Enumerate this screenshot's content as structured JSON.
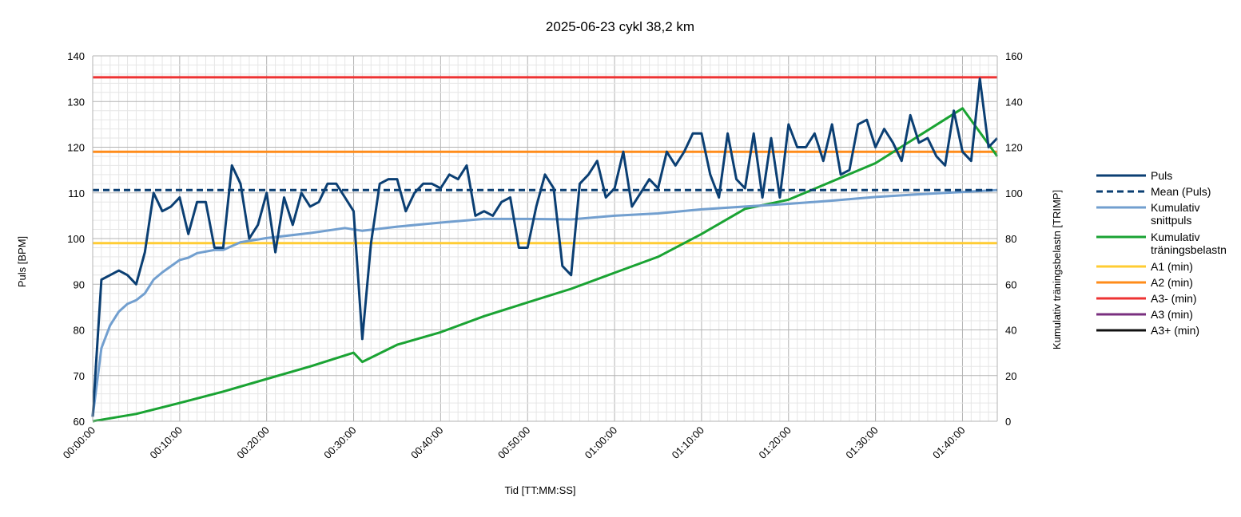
{
  "chart_data": {
    "type": "line",
    "title": "2025-06-23 cykl 38,2 km",
    "xlabel": "Tid [TT:MM:SS]",
    "ylabel": "Puls [BPM]",
    "y2label": "Kumulativ träningsbelastn [TRIMP]",
    "xlim": [
      0,
      104
    ],
    "ylim": [
      60,
      140
    ],
    "y2lim": [
      0,
      160
    ],
    "x_ticks": [
      "00:00:00",
      "00:10:00",
      "00:20:00",
      "00:30:00",
      "00:40:00",
      "00:50:00",
      "01:00:00",
      "01:10:00",
      "01:20:00",
      "01:30:00",
      "01:40:00"
    ],
    "y_ticks": [
      "60",
      "70",
      "80",
      "90",
      "100",
      "110",
      "120",
      "130",
      "140"
    ],
    "y2_ticks": [
      "0",
      "20",
      "40",
      "60",
      "80",
      "100",
      "120",
      "140",
      "160"
    ],
    "grid": true,
    "legend_position": "right",
    "x_unit": "minutes",
    "series": [
      {
        "name": "Puls",
        "axis": "left",
        "color": "#0b3f73",
        "dash": "solid",
        "x": [
          0,
          1,
          2,
          3,
          4,
          5,
          6,
          7,
          8,
          9,
          10,
          11,
          12,
          13,
          14,
          15,
          16,
          17,
          18,
          19,
          20,
          21,
          22,
          23,
          24,
          25,
          26,
          27,
          28,
          29,
          30,
          31,
          32,
          33,
          34,
          35,
          36,
          37,
          38,
          39,
          40,
          41,
          42,
          43,
          44,
          45,
          46,
          47,
          48,
          49,
          50,
          51,
          52,
          53,
          54,
          55,
          56,
          57,
          58,
          59,
          60,
          61,
          62,
          63,
          64,
          65,
          66,
          67,
          68,
          69,
          70,
          71,
          72,
          73,
          74,
          75,
          76,
          77,
          78,
          79,
          80,
          81,
          82,
          83,
          84,
          85,
          86,
          87,
          88,
          89,
          90,
          91,
          92,
          93,
          94,
          95,
          96,
          97,
          98,
          99,
          100,
          101,
          102,
          103,
          104
        ],
        "values": [
          61,
          91,
          92,
          93,
          92,
          90,
          97,
          110,
          106,
          107,
          109,
          101,
          108,
          108,
          98,
          98,
          116,
          112,
          100,
          103,
          110,
          97,
          109,
          103,
          110,
          107,
          108,
          112,
          112,
          109,
          106,
          78,
          99,
          112,
          113,
          113,
          106,
          110,
          112,
          112,
          111,
          114,
          113,
          116,
          105,
          106,
          105,
          108,
          109,
          98,
          98,
          107,
          114,
          111,
          94,
          92,
          112,
          114,
          117,
          109,
          111,
          119,
          107,
          110,
          113,
          111,
          119,
          116,
          119,
          123,
          123,
          114,
          109,
          123,
          113,
          111,
          123,
          109,
          122,
          109,
          125,
          120,
          120,
          123,
          117,
          125,
          114,
          115,
          125,
          126,
          120,
          124,
          121,
          117,
          127,
          121,
          122,
          118,
          116,
          128,
          119,
          117,
          135,
          120,
          122
        ]
      },
      {
        "name": "Mean (Puls)",
        "axis": "left",
        "color": "#0b3f73",
        "dash": "dashed",
        "x": [
          0,
          104
        ],
        "values": [
          110.6,
          110.6
        ]
      },
      {
        "name": "Kumulativ snittpuls",
        "axis": "left",
        "color": "#729fcf",
        "dash": "solid",
        "x": [
          0,
          1,
          2,
          3,
          4,
          5,
          6,
          7,
          8,
          10,
          11,
          12,
          14,
          15,
          17,
          20,
          25,
          29,
          31,
          35,
          40,
          45,
          50,
          55,
          60,
          65,
          70,
          75,
          80,
          85,
          90,
          95,
          100,
          104
        ],
        "values": [
          61,
          76,
          81,
          84,
          85.7,
          86.5,
          88,
          91,
          92.6,
          95.3,
          95.8,
          96.8,
          97.5,
          97.5,
          99.2,
          100.1,
          101.2,
          102.3,
          101.7,
          102.6,
          103.5,
          104.3,
          104.3,
          104.2,
          105,
          105.5,
          106.4,
          107,
          107.6,
          108.3,
          109.1,
          109.7,
          110.2,
          110.6
        ]
      },
      {
        "name": "Kumulativ träningsbelastn",
        "axis": "right",
        "color": "#1aa333",
        "dash": "solid",
        "x": [
          0,
          5,
          10,
          15,
          20,
          25,
          30,
          31,
          35,
          40,
          45,
          50,
          55,
          60,
          65,
          70,
          75,
          80,
          85,
          90,
          95,
          100,
          104
        ],
        "values": [
          0,
          3.2,
          8,
          13,
          18.5,
          24,
          30,
          26,
          33.5,
          39,
          46,
          52,
          58,
          65,
          72,
          82,
          93,
          97,
          105,
          113,
          125,
          137,
          116
        ]
      },
      {
        "name": "A1 (min)",
        "axis": "left",
        "color": "#ffcc33",
        "dash": "solid",
        "x": [
          0,
          104
        ],
        "values": [
          99,
          99
        ]
      },
      {
        "name": "A2 (min)",
        "axis": "left",
        "color": "#ff8c1a",
        "dash": "solid",
        "x": [
          0,
          104
        ],
        "values": [
          119,
          119
        ]
      },
      {
        "name": "A3- (min)",
        "axis": "left",
        "color": "#ee3333",
        "dash": "solid",
        "x": [
          0,
          104
        ],
        "values": [
          135.3,
          135.3
        ]
      },
      {
        "name": "A3 (min)",
        "axis": "left",
        "color": "#7a2f7f",
        "dash": "solid",
        "x": [],
        "values": []
      },
      {
        "name": "A3+ (min)",
        "axis": "left",
        "color": "#111111",
        "dash": "solid",
        "x": [],
        "values": []
      }
    ]
  }
}
